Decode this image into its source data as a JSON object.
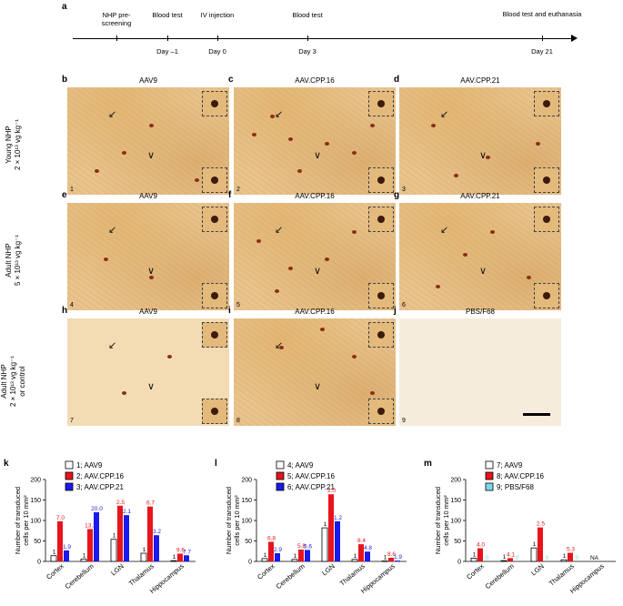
{
  "panel_a": {
    "letter": "a",
    "timeline": [
      {
        "top": "NHP pre-screening",
        "bottom": ""
      },
      {
        "top": "Blood test",
        "bottom": "Day –1"
      },
      {
        "top": "IV injection",
        "bottom": "Day 0"
      },
      {
        "top": "Blood test",
        "bottom": "Day 3"
      },
      {
        "top": "Blood test and euthanasia",
        "bottom": "Day 21"
      }
    ]
  },
  "rows": [
    {
      "label_line1": "Young NHP",
      "label_line2": "2 × 10¹³ vg kg⁻¹"
    },
    {
      "label_line1": "Adult NHP",
      "label_line2": "5 × 10¹³ vg kg⁻¹"
    },
    {
      "label_line1": "Adult NHP",
      "label_line2": "2 × 10¹³ vg kg⁻¹",
      "label_line3": "or control"
    }
  ],
  "micro_panels": [
    {
      "letter": "b",
      "title": "AAV9",
      "num": "1"
    },
    {
      "letter": "c",
      "title": "AAV.CPP.16",
      "num": "2"
    },
    {
      "letter": "d",
      "title": "AAV.CPP.21",
      "num": "3"
    },
    {
      "letter": "e",
      "title": "AAV9",
      "num": "4"
    },
    {
      "letter": "f",
      "title": "AAV.CPP.16",
      "num": "5"
    },
    {
      "letter": "g",
      "title": "AAV.CPP.21",
      "num": "6"
    },
    {
      "letter": "h",
      "title": "AAV9",
      "num": "7"
    },
    {
      "letter": "i",
      "title": "AAV.CPP.16",
      "num": "8"
    },
    {
      "letter": "j",
      "title": "PBS/F68",
      "num": "9"
    }
  ],
  "colors": {
    "white": "#ffffff",
    "red": "#e8141b",
    "blue": "#1a1aee",
    "cyan": "#7fd8e8",
    "black": "#000000"
  },
  "chart_data": [
    {
      "letter": "k",
      "type": "bar",
      "ylabel": "Number of transduced cells per 10 mm²",
      "ylim": [
        0,
        200
      ],
      "yticks": [
        "0",
        "50",
        "100",
        "150",
        "200"
      ],
      "categories": [
        "Cortex",
        "Cerebellum",
        "LGN",
        "Thalamus",
        "Hippocampus"
      ],
      "series": [
        {
          "name": "1; AAV9",
          "values": [
            14,
            6,
            54,
            20,
            2
          ],
          "labels": [
            "1",
            "1",
            "1",
            "1",
            "1"
          ]
        },
        {
          "name": "2; AAV.CPP.16",
          "values": [
            98,
            79,
            136,
            134,
            19
          ],
          "labels": [
            "7.0",
            "13.2",
            "2.5",
            "6.7",
            "9.6"
          ]
        },
        {
          "name": "3; AAV.CPP.21",
          "values": [
            27,
            120,
            113,
            64,
            15
          ],
          "labels": [
            "1.9",
            "20.0",
            "2.1",
            "3.2",
            "7.7"
          ]
        }
      ]
    },
    {
      "letter": "l",
      "type": "bar",
      "ylabel": "Number of transduced cells per 10 mm²",
      "ylim": [
        0,
        200
      ],
      "yticks": [
        "0",
        "50",
        "100",
        "150",
        "200"
      ],
      "categories": [
        "Cortex",
        "Cerebellum",
        "LGN",
        "Thalamus",
        "Hippocampus"
      ],
      "series": [
        {
          "name": "4; AAV9",
          "values": [
            7,
            5,
            82,
            5,
            1
          ],
          "labels": [
            "1",
            "1",
            "1",
            "1",
            "1"
          ]
        },
        {
          "name": "5; AAV.CPP.16",
          "values": [
            48,
            29,
            164,
            42,
            9
          ],
          "labels": [
            "6.8",
            "5.8",
            "2.0",
            "8.4",
            "8.6"
          ]
        },
        {
          "name": "6; AAV.CPP.21",
          "values": [
            20,
            28,
            98,
            24,
            2
          ],
          "labels": [
            "2.9",
            "5.6",
            "1.2",
            "4.8",
            "1.9"
          ]
        }
      ]
    },
    {
      "letter": "m",
      "type": "bar",
      "ylabel": "Number of transduced cells per 10 mm²",
      "ylim": [
        0,
        200
      ],
      "yticks": [
        "0",
        "50",
        "100",
        "150",
        "200"
      ],
      "categories": [
        "Cortex",
        "Cerebellum",
        "LGN",
        "Thalamus",
        "Hippocampus"
      ],
      "series": [
        {
          "name": "7; AAV9",
          "values": [
            8,
            2,
            33,
            4,
            0
          ],
          "labels": [
            "1",
            "1",
            "1",
            "1",
            "NA"
          ]
        },
        {
          "name": "8; AAV.CPP.16",
          "values": [
            32,
            8,
            83,
            21,
            0
          ],
          "labels": [
            "4.0",
            "4.1",
            "2.5",
            "5.3",
            ""
          ]
        },
        {
          "name": "9; PBS/F68",
          "values": [
            0,
            0,
            0,
            0,
            0
          ],
          "labels": [
            "0",
            "0",
            "0",
            "0",
            ""
          ]
        }
      ]
    }
  ]
}
